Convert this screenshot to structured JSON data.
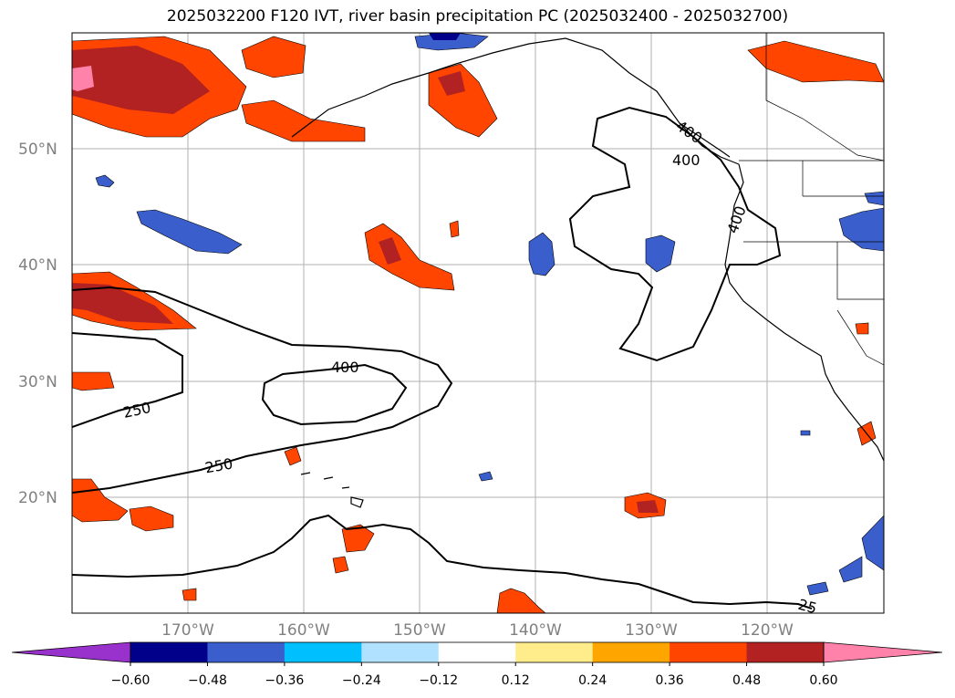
{
  "title": "2025032200 F120 IVT, river basin precipitation PC (2025032400 - 2025032700)",
  "map": {
    "lat_labels": [
      "50°N",
      "40°N",
      "30°N",
      "20°N"
    ],
    "lon_labels": [
      "170°W",
      "160°W",
      "150°W",
      "140°W",
      "130°W",
      "120°W"
    ],
    "ivt_contour_labels": [
      "400",
      "250",
      "250",
      "400",
      "400",
      "400",
      "25"
    ]
  },
  "colorbar": {
    "tick_labels": [
      "−0.60",
      "−0.48",
      "−0.36",
      "−0.24",
      "−0.12",
      "0.12",
      "0.24",
      "0.36",
      "0.48",
      "0.60"
    ],
    "colors": [
      "#9932cc",
      "#00008b",
      "#3a5fcd",
      "#00bfff",
      "#b0e2ff",
      "#ffffff",
      "#ffec8b",
      "#ffa500",
      "#ff4500",
      "#b22222",
      "#ff82ab"
    ]
  }
}
